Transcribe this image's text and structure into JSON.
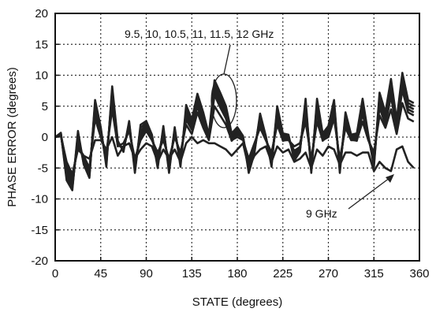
{
  "chart_data": {
    "type": "line",
    "xlabel": "STATE (degrees)",
    "ylabel": "PHASE ERROR  (degrees)",
    "xlim": [
      0,
      360
    ],
    "ylim": [
      -20,
      20
    ],
    "xticks": [
      "0",
      "45",
      "90",
      "135",
      "180",
      "225",
      "270",
      "315",
      "360"
    ],
    "yticks": [
      "20",
      "15",
      "10",
      "5",
      "0",
      "-5",
      "-10",
      "-15",
      "-20"
    ],
    "grid": true,
    "grid_style": "dotted",
    "line_color": "#222222",
    "annotations": [
      {
        "text": "9.5, 10, 10.5, 11, 11.5, 12  GHz"
      },
      {
        "text": "9 GHz"
      }
    ],
    "x": [
      0,
      5.6,
      11.3,
      16.9,
      22.5,
      28.1,
      33.8,
      39.4,
      45,
      50.6,
      56.3,
      61.9,
      67.5,
      73.1,
      78.8,
      84.4,
      90,
      95.6,
      101.3,
      106.9,
      112.5,
      118.1,
      123.8,
      129.4,
      135,
      140.6,
      146.3,
      151.9,
      157.5,
      163.1,
      168.8,
      174.4,
      180,
      185.6,
      191.3,
      196.9,
      202.5,
      208.1,
      213.8,
      219.4,
      225,
      230.6,
      236.3,
      241.9,
      247.5,
      253.1,
      258.8,
      264.4,
      270,
      275.6,
      281.3,
      286.9,
      292.5,
      298.1,
      303.8,
      309.4,
      315,
      320.6,
      326.3,
      331.9,
      337.5,
      343.1,
      348.8,
      354.4
    ],
    "series": [
      {
        "values": [
          0,
          0.5,
          -6,
          -8,
          0,
          -4,
          -6,
          5,
          1,
          -4,
          7,
          -1,
          -2,
          2,
          -5,
          1,
          2,
          0,
          -4,
          1,
          -5,
          1,
          -4,
          4,
          2,
          6,
          3,
          0,
          8,
          6,
          4,
          0,
          1,
          0,
          -5,
          -2,
          3,
          0,
          -4,
          4,
          0,
          0,
          -3,
          -2,
          5,
          -5,
          5,
          0,
          1,
          5,
          -5,
          3,
          0,
          0,
          5,
          0,
          -4,
          6,
          3,
          8,
          2,
          9,
          5,
          4.5
        ]
      },
      {
        "values": [
          0,
          0.6,
          -6.5,
          -8.3,
          0.5,
          -4.2,
          -6.3,
          5.5,
          1.3,
          -4.4,
          7.6,
          -0.8,
          -2.2,
          2.3,
          -5.4,
          1.5,
          2.3,
          0.2,
          -4.5,
          1.4,
          -5.4,
          1.3,
          -4.4,
          4.6,
          2.4,
          6.5,
          3.5,
          0.2,
          8.6,
          6.6,
          4.5,
          0.3,
          1.3,
          0.1,
          -5.4,
          -2.3,
          3.4,
          0.1,
          -4.4,
          4.5,
          0.3,
          0.2,
          -3.4,
          -2.2,
          5.6,
          -5.4,
          5.6,
          0.3,
          1.4,
          5.5,
          -5.4,
          3.5,
          0.2,
          0.3,
          5.6,
          0.2,
          -4.4,
          6.6,
          3.5,
          8.7,
          2.4,
          9.7,
          5.5,
          5
        ]
      },
      {
        "values": [
          0,
          0.7,
          -7,
          -8.6,
          1,
          -4.4,
          -6.6,
          6,
          1.6,
          -4.8,
          8.2,
          -0.6,
          -2.4,
          2.6,
          -5.8,
          2,
          2.6,
          0.4,
          -5,
          1.8,
          -5.8,
          1.6,
          -4.8,
          5.2,
          2.8,
          7,
          4,
          0.4,
          9.2,
          7.2,
          5,
          0.6,
          1.6,
          0.2,
          -5.8,
          -2.6,
          3.8,
          0.2,
          -4.8,
          5,
          0.6,
          0.4,
          -3.8,
          -2.4,
          6.2,
          -5.8,
          6.2,
          0.6,
          1.8,
          6,
          -5.8,
          4,
          0.4,
          0.6,
          6.2,
          0.4,
          -4.8,
          7.2,
          4,
          9.4,
          2.8,
          10.4,
          6,
          5.5
        ]
      },
      {
        "values": [
          0,
          0.4,
          -5.5,
          -7.5,
          -0.5,
          -3.8,
          -5.7,
          4.5,
          0.7,
          -3.6,
          6.4,
          -1.2,
          -1.8,
          1.7,
          -4.6,
          0.5,
          1.7,
          -0.2,
          -3.5,
          0.6,
          -4.6,
          0.7,
          -3.6,
          3.4,
          1.6,
          5.5,
          2.5,
          -0.2,
          7.4,
          5.4,
          3.5,
          -0.3,
          0.7,
          -0.1,
          -4.6,
          -1.7,
          2.6,
          -0.1,
          -3.6,
          3.5,
          -0.3,
          -0.2,
          -2.6,
          -1.8,
          4.4,
          -4.6,
          4.4,
          -0.3,
          0.6,
          4.5,
          -4.6,
          2.5,
          -0.2,
          -0.3,
          4.4,
          -0.2,
          -3.6,
          5.4,
          2.5,
          7.3,
          1.6,
          8.3,
          4.5,
          4
        ]
      },
      {
        "values": [
          0,
          0.3,
          -5,
          -7,
          -1,
          -3.5,
          -5.3,
          4,
          0.4,
          -3.2,
          5.8,
          -1.4,
          -1.6,
          1.4,
          -4.2,
          0,
          1.4,
          -0.4,
          -3,
          0.2,
          -4.2,
          0.4,
          -3.2,
          2.8,
          1.2,
          5,
          2,
          -0.4,
          6.8,
          4.8,
          3,
          -0.6,
          0.4,
          -0.2,
          -4.2,
          -1.4,
          2.2,
          -0.2,
          -3.2,
          3,
          -0.6,
          -0.4,
          -2.2,
          -1.6,
          3.8,
          -4.2,
          3.8,
          -0.6,
          0.2,
          4,
          -4.2,
          2,
          -0.4,
          -0.6,
          3.8,
          -0.4,
          -3.2,
          4.8,
          2,
          6.6,
          1.2,
          7.6,
          4,
          3.5
        ]
      },
      {
        "values": [
          0,
          0.5,
          -4.5,
          -6.5,
          -1.5,
          -3,
          -5,
          3,
          0,
          -2.5,
          4.5,
          -1.5,
          -1,
          1,
          -3.5,
          -0.5,
          1,
          -0.5,
          -2.5,
          -0.5,
          -3.5,
          0,
          -2.5,
          2,
          0.5,
          4,
          1.5,
          -0.5,
          5,
          3.5,
          2,
          -0.5,
          0,
          -0.5,
          -3.5,
          -1,
          1.5,
          -0.5,
          -2.5,
          2,
          -0.5,
          -0.5,
          -1.5,
          -1,
          2.5,
          -3.5,
          2.5,
          -0.5,
          0,
          3,
          -3.5,
          1.5,
          -0.5,
          -0.5,
          2.5,
          -0.5,
          -2.5,
          3.5,
          1.5,
          4.5,
          0.5,
          5.5,
          3,
          2.5
        ]
      },
      {
        "values": [
          0,
          0.2,
          -4,
          -6,
          -2,
          -3,
          -3.5,
          -0.5,
          -0.5,
          -2,
          0,
          -3,
          -1.5,
          -1,
          -3.5,
          -2,
          -1,
          -1.5,
          -4,
          -2,
          -3.5,
          -2,
          -4,
          -1,
          0,
          -1,
          -0.5,
          -1,
          -1,
          -1.5,
          -2,
          -3,
          -2,
          -1,
          -5,
          -3,
          -2,
          -1.5,
          -4,
          -1.5,
          -2.5,
          -2,
          -4,
          -3.5,
          -2.5,
          -5,
          -2,
          -3,
          -1.5,
          -2,
          -4.5,
          -2.5,
          -2.5,
          -3,
          -2.5,
          -2.5,
          -5.5,
          -4,
          -5,
          -5.5,
          -2,
          -1.5,
          -4,
          -5
        ]
      }
    ]
  }
}
